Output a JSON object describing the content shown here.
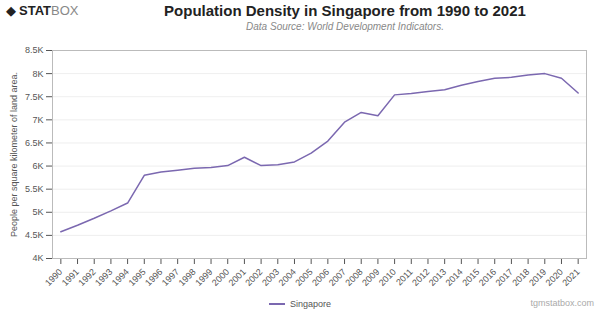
{
  "chart_data": {
    "type": "line",
    "title": "Population Density in Singapore from 1990 to 2021",
    "subtitle": "Data Source: World Development Indicators.",
    "ylabel": "People per square kilometer of land area.",
    "annotations": [
      "◆",
      "STAT",
      "BOX",
      "tgmstatbox.com"
    ],
    "x": [
      1990,
      1991,
      1992,
      1993,
      1994,
      1995,
      1996,
      1997,
      1998,
      1999,
      2000,
      2001,
      2002,
      2003,
      2004,
      2005,
      2006,
      2007,
      2008,
      2009,
      2010,
      2011,
      2012,
      2013,
      2014,
      2015,
      2016,
      2017,
      2018,
      2019,
      2020,
      2021
    ],
    "series": [
      {
        "name": "Singapore",
        "color": "#7B68B0",
        "values": [
          4580,
          4720,
          4870,
          5030,
          5200,
          5800,
          5870,
          5910,
          5950,
          5970,
          6010,
          6190,
          6010,
          6030,
          6090,
          6280,
          6540,
          6950,
          7160,
          7090,
          7540,
          7570,
          7615,
          7650,
          7750,
          7830,
          7900,
          7920,
          7970,
          8000,
          7900,
          7580
        ]
      }
    ],
    "xlim": [
      1989.5,
      2021.5
    ],
    "xticks": [
      1990,
      1991,
      1992,
      1993,
      1994,
      1995,
      1996,
      1997,
      1998,
      1999,
      2000,
      2001,
      2002,
      2003,
      2004,
      2005,
      2006,
      2007,
      2008,
      2009,
      2010,
      2011,
      2012,
      2013,
      2014,
      2015,
      2016,
      2017,
      2018,
      2019,
      2020,
      2021
    ],
    "ylim": [
      4000,
      8500
    ],
    "yticks": [
      {
        "value": 4000,
        "label": "4K"
      },
      {
        "value": 4500,
        "label": "4.5K"
      },
      {
        "value": 5000,
        "label": "5K"
      },
      {
        "value": 5500,
        "label": "5.5K"
      },
      {
        "value": 6000,
        "label": "6K"
      },
      {
        "value": 6500,
        "label": "6.5K"
      },
      {
        "value": 7000,
        "label": "7K"
      },
      {
        "value": 7500,
        "label": "7.5K"
      },
      {
        "value": 8000,
        "label": "8K"
      },
      {
        "value": 8500,
        "label": "8.5K"
      }
    ],
    "grid": true,
    "legend": "bottom"
  }
}
